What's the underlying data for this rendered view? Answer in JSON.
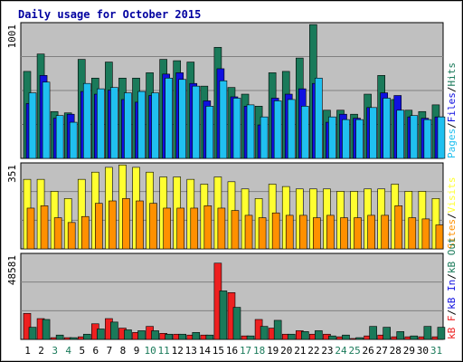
{
  "chart_data": {
    "type": "bar",
    "title": "Daily usage for October 2015",
    "days": [
      "1",
      "2",
      "3",
      "4",
      "5",
      "6",
      "7",
      "8",
      "9",
      "10",
      "11",
      "12",
      "13",
      "14",
      "15",
      "16",
      "17",
      "18",
      "19",
      "20",
      "21",
      "22",
      "23",
      "24",
      "25",
      "26",
      "27",
      "28",
      "29",
      "30",
      "31"
    ],
    "weekend_days": [
      3,
      4,
      10,
      11,
      17,
      18,
      24,
      25,
      31
    ],
    "panels": [
      {
        "id": "hits",
        "max_label": "1001",
        "ymax": 1001,
        "series": [
          {
            "name": "Hits",
            "color": "#1a7a5a",
            "values": [
              650,
              780,
              350,
              340,
              740,
              600,
              720,
              600,
              600,
              640,
              740,
              730,
              720,
              540,
              830,
              530,
              480,
              390,
              640,
              650,
              750,
              1000,
              360,
              360,
              330,
              480,
              620,
              440,
              360,
              350,
              400
            ]
          },
          {
            "name": "Files",
            "color": "#1010e0",
            "values": [
              410,
              620,
              300,
              330,
              500,
              480,
              510,
              440,
              420,
              470,
              630,
              640,
              560,
              430,
              670,
              460,
              390,
              250,
              450,
              480,
              520,
              560,
              270,
              330,
              300,
              380,
              490,
              470,
              310,
              300,
              310
            ]
          },
          {
            "name": "Pages",
            "color": "#20c0f0",
            "values": [
              490,
              570,
              320,
              270,
              560,
              520,
              530,
              490,
              500,
              490,
              600,
              590,
              540,
              390,
              580,
              450,
              400,
              310,
              430,
              440,
              390,
              600,
              310,
              290,
              290,
              380,
              450,
              360,
              320,
              290,
              310
            ]
          }
        ],
        "legend": [
          {
            "label": "Pages",
            "color": "#20c0f0"
          },
          {
            "label": "Files",
            "color": "#1010e0"
          },
          {
            "label": "Hits",
            "color": "#1a7a5a"
          }
        ]
      },
      {
        "id": "visits",
        "max_label": "351",
        "ymax": 351,
        "series": [
          {
            "name": "Visits",
            "color": "#ffff30",
            "values": [
              290,
              290,
              240,
              210,
              290,
              320,
              340,
              350,
              340,
              320,
              300,
              300,
              290,
              270,
              300,
              280,
              250,
              210,
              270,
              260,
              250,
              250,
              250,
              240,
              240,
              250,
              250,
              270,
              240,
              240,
              210
            ]
          },
          {
            "name": "Sites",
            "color": "#ff9000",
            "values": [
              170,
              180,
              130,
              110,
              135,
              190,
              200,
              210,
              200,
              190,
              170,
              170,
              170,
              180,
              170,
              160,
              140,
              130,
              150,
              140,
              140,
              130,
              140,
              130,
              130,
              140,
              140,
              180,
              130,
              125,
              100
            ]
          }
        ],
        "legend": [
          {
            "label": "Sites",
            "color": "#ff9000"
          },
          {
            "label": "Visits",
            "color": "#ffff30"
          }
        ]
      },
      {
        "id": "kbytes",
        "max_label": "48581",
        "ymax": 48581,
        "series": [
          {
            "name": "kB F",
            "color": "#ee2020",
            "values": [
              15000,
              12000,
              1000,
              1000,
              1500,
              9000,
              12000,
              6500,
              4000,
              7500,
              3500,
              3000,
              2500,
              2500,
              44000,
              27000,
              2000,
              11500,
              6500,
              3000,
              5000,
              3000,
              3000,
              1500,
              500,
              2000,
              2500,
              1500,
              1500,
              1500,
              1500
            ]
          },
          {
            "name": "kB In",
            "color": "#1010e0",
            "values": [
              0,
              0,
              0,
              0,
              0,
              0,
              0,
              0,
              0,
              0,
              0,
              0,
              0,
              0,
              0,
              0,
              0,
              0,
              0,
              0,
              0,
              0,
              0,
              0,
              0,
              0,
              0,
              0,
              0,
              0,
              0
            ]
          },
          {
            "name": "kB Out",
            "color": "#1a7a5a",
            "values": [
              7000,
              11500,
              2500,
              1000,
              3000,
              6000,
              10000,
              5500,
              5000,
              5000,
              3000,
              3000,
              4000,
              2500,
              28000,
              18500,
              2000,
              7500,
              11000,
              3000,
              4500,
              5000,
              2000,
              2500,
              1000,
              7500,
              7000,
              4500,
              2000,
              7500,
              7000
            ]
          }
        ],
        "legend": [
          {
            "label": "kB F",
            "color": "#ee2020"
          },
          {
            "label": "kB In",
            "color": "#1010e0"
          },
          {
            "label": "kB Out",
            "color": "#1a7a5a"
          }
        ]
      }
    ]
  }
}
